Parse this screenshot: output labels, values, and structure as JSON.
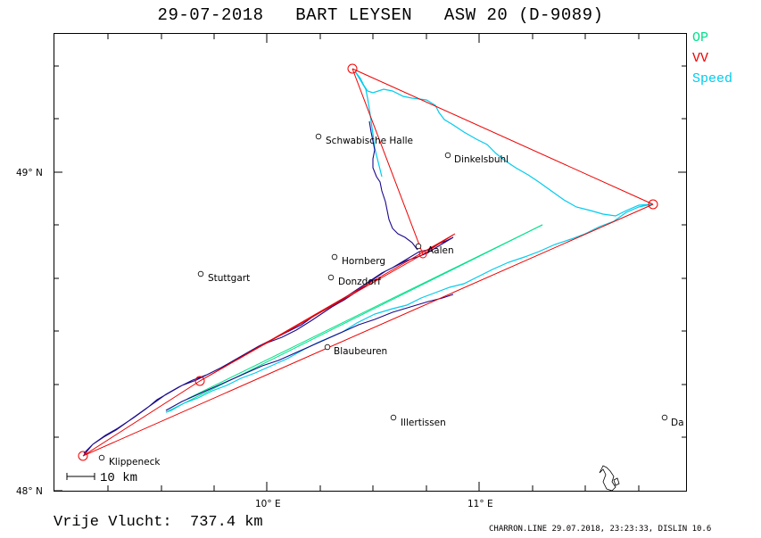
{
  "title": "29-07-2018   BART LEYSEN   ASW 20 (D-9089)",
  "legend": {
    "op": {
      "label": "OP",
      "color": "#00e08a"
    },
    "vv": {
      "label": "VV",
      "color": "#ee0000"
    },
    "speed": {
      "label": "Speed",
      "color": "#00ccee"
    }
  },
  "axes": {
    "lat_labels": [
      "49° N",
      "48° N"
    ],
    "lon_labels": [
      "10° E",
      "11° E"
    ]
  },
  "places": [
    {
      "name": "Schwabische Halle"
    },
    {
      "name": "Dinkelsbuhl"
    },
    {
      "name": "Aalen"
    },
    {
      "name": "Hornberg"
    },
    {
      "name": "Stuttgart"
    },
    {
      "name": "Donzdorf"
    },
    {
      "name": "Blaubeuren"
    },
    {
      "name": "Illertissen"
    },
    {
      "name": "Da"
    },
    {
      "name": "Klippeneck"
    }
  ],
  "scale_bar": "10 km",
  "footer": {
    "distance": "Vrije Vlucht:  737.4 km",
    "meta": "CHARRON.LINE 29.07.2018, 23:23:33, DISLIN 10.6"
  },
  "colors": {
    "frame": "#000000",
    "track": "#1a0a8c",
    "speed_track": "#00ccee",
    "task": "#ee0000",
    "op": "#00e08a"
  }
}
